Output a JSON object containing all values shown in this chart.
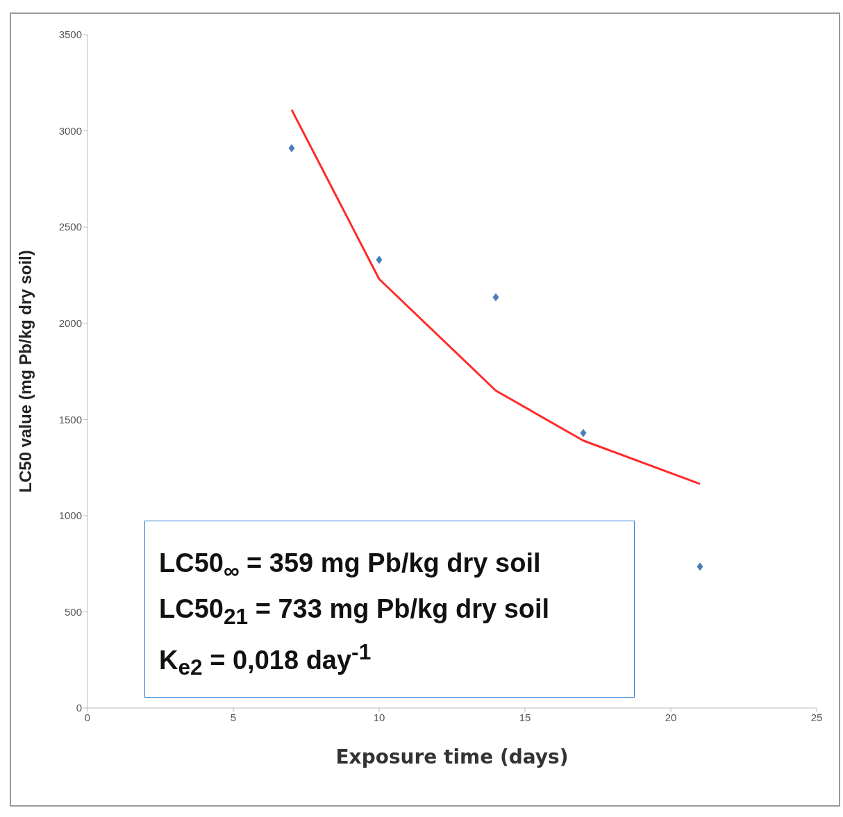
{
  "chart_data": {
    "type": "scatter",
    "xlabel": "Exposure time (days)",
    "ylabel": "LC50 value (mg Pb/kg dry soil)",
    "x": [
      7,
      10,
      14,
      17,
      21
    ],
    "series": [
      {
        "color": "#4a7ebb",
        "marker": "diamond",
        "values": [
          2910,
          2330,
          2135,
          1430,
          735
        ]
      },
      {
        "type": "line",
        "color": "#ff2a2a",
        "marker": "none",
        "line_style": "solid",
        "values": [
          3110,
          2230,
          1650,
          1390,
          1165
        ]
      }
    ],
    "xlim": [
      0,
      25
    ],
    "xticks": [
      0,
      5,
      10,
      15,
      20,
      25
    ],
    "ylim": [
      0,
      3500
    ],
    "yticks": [
      0,
      500,
      1000,
      1500,
      2000,
      2500,
      3000,
      3500
    ],
    "grid": false,
    "legend": false,
    "annotations": [
      "LC50$_{∞}$ = 359 mg Pb/kg dry soil",
      "LC50$_{21}$ = 733 mg Pb/kg dry soil",
      "K$_{e2}$ = 0,018 day$^{-1}$"
    ]
  }
}
